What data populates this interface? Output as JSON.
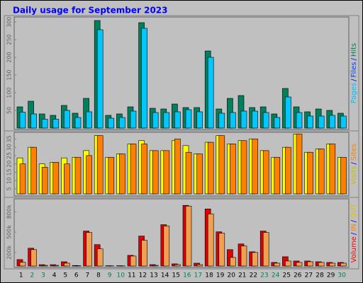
{
  "title": "Daily usage for September 2023",
  "chart_data": [
    {
      "type": "bar",
      "categories": [
        "1",
        "2",
        "3",
        "4",
        "5",
        "6",
        "7",
        "8",
        "9",
        "10",
        "11",
        "12",
        "13",
        "14",
        "15",
        "16",
        "17",
        "18",
        "19",
        "20",
        "21",
        "22",
        "23",
        "24",
        "25",
        "26",
        "27",
        "28",
        "29",
        "30"
      ],
      "highlight_categories": [
        "2",
        "3",
        "9",
        "10",
        "16",
        "17",
        "23",
        "24",
        "30"
      ],
      "highlight_color": "#00805c",
      "ylim": [
        0,
        310
      ],
      "yticks": [
        50,
        100,
        150,
        200,
        250,
        300
      ],
      "legend": [
        {
          "label": "Pages",
          "color": "#00c0ff"
        },
        {
          "label": "/",
          "color": "#0000ff"
        },
        {
          "label": "Files",
          "color": "#0040ff"
        },
        {
          "label": "/",
          "color": "#0000ff"
        },
        {
          "label": "Hits",
          "color": "#00805c"
        }
      ],
      "series": [
        {
          "color": "#00805c",
          "values": [
            60,
            76,
            40,
            36,
            64,
            42,
            84,
            304,
            36,
            40,
            60,
            298,
            56,
            54,
            68,
            58,
            58,
            218,
            54,
            84,
            92,
            58,
            60,
            40,
            112,
            60,
            46,
            54,
            50,
            42
          ]
        },
        {
          "color": "#00c8ff",
          "values": [
            45,
            40,
            25,
            25,
            50,
            30,
            46,
            278,
            28,
            30,
            48,
            282,
            44,
            44,
            46,
            52,
            46,
            200,
            42,
            44,
            48,
            48,
            44,
            30,
            88,
            44,
            34,
            34,
            36,
            34
          ]
        }
      ]
    },
    {
      "type": "bar",
      "ylim": [
        2,
        39
      ],
      "yticks": [
        5,
        10,
        15,
        20,
        25,
        30,
        35
      ],
      "legend": [
        {
          "label": "Visits",
          "color": "#c0c000"
        },
        {
          "label": "/",
          "color": "#0000ff"
        },
        {
          "label": "Sites",
          "color": "#ff8000"
        }
      ],
      "series": [
        {
          "color": "#ffff00",
          "values": [
            23.6,
            30,
            20,
            21,
            23.6,
            24,
            28,
            37,
            24,
            26,
            32,
            34,
            28,
            28,
            34,
            31,
            26,
            33,
            37,
            32,
            34,
            35,
            28,
            24,
            30,
            38,
            27,
            29,
            32,
            24
          ]
        },
        {
          "color": "#ff8000",
          "values": [
            20,
            30,
            18,
            21,
            20,
            24,
            25,
            37,
            24,
            26,
            32,
            32,
            28,
            28,
            35,
            27,
            26,
            33,
            37,
            32,
            34,
            35,
            28,
            24,
            30,
            38,
            27,
            29,
            32,
            24
          ]
        }
      ]
    },
    {
      "type": "bar",
      "ylim": [
        0,
        960
      ],
      "yticks": [
        {
          "value": 200,
          "label": "200k"
        },
        {
          "value": 500,
          "label": "500k"
        },
        {
          "value": 800,
          "label": "800k"
        }
      ],
      "legend": [
        {
          "label": "Volume",
          "color": "#ff0000"
        },
        {
          "label": "/",
          "color": "#0000ff"
        },
        {
          "label": "IN",
          "color": "#ff8000"
        },
        {
          "label": "/",
          "color": "#0000ff"
        },
        {
          "label": "OUT",
          "color": "#e0c000"
        }
      ],
      "series": [
        {
          "color": "#e00000",
          "values": [
            95,
            263,
            20,
            20,
            63,
            8,
            516,
            316,
            5,
            5,
            158,
            442,
            21,
            610,
            32,
            895,
            42,
            842,
            505,
            242,
            326,
            210,
            516,
            53,
            137,
            74,
            74,
            63,
            53,
            53
          ]
        },
        {
          "color": "#f0a050",
          "values": [
            55,
            242,
            10,
            10,
            42,
            5,
            495,
            253,
            3,
            3,
            147,
            379,
            10,
            590,
            21,
            884,
            21,
            768,
            484,
            126,
            295,
            200,
            495,
            42,
            74,
            53,
            63,
            53,
            42,
            42
          ]
        }
      ]
    }
  ]
}
